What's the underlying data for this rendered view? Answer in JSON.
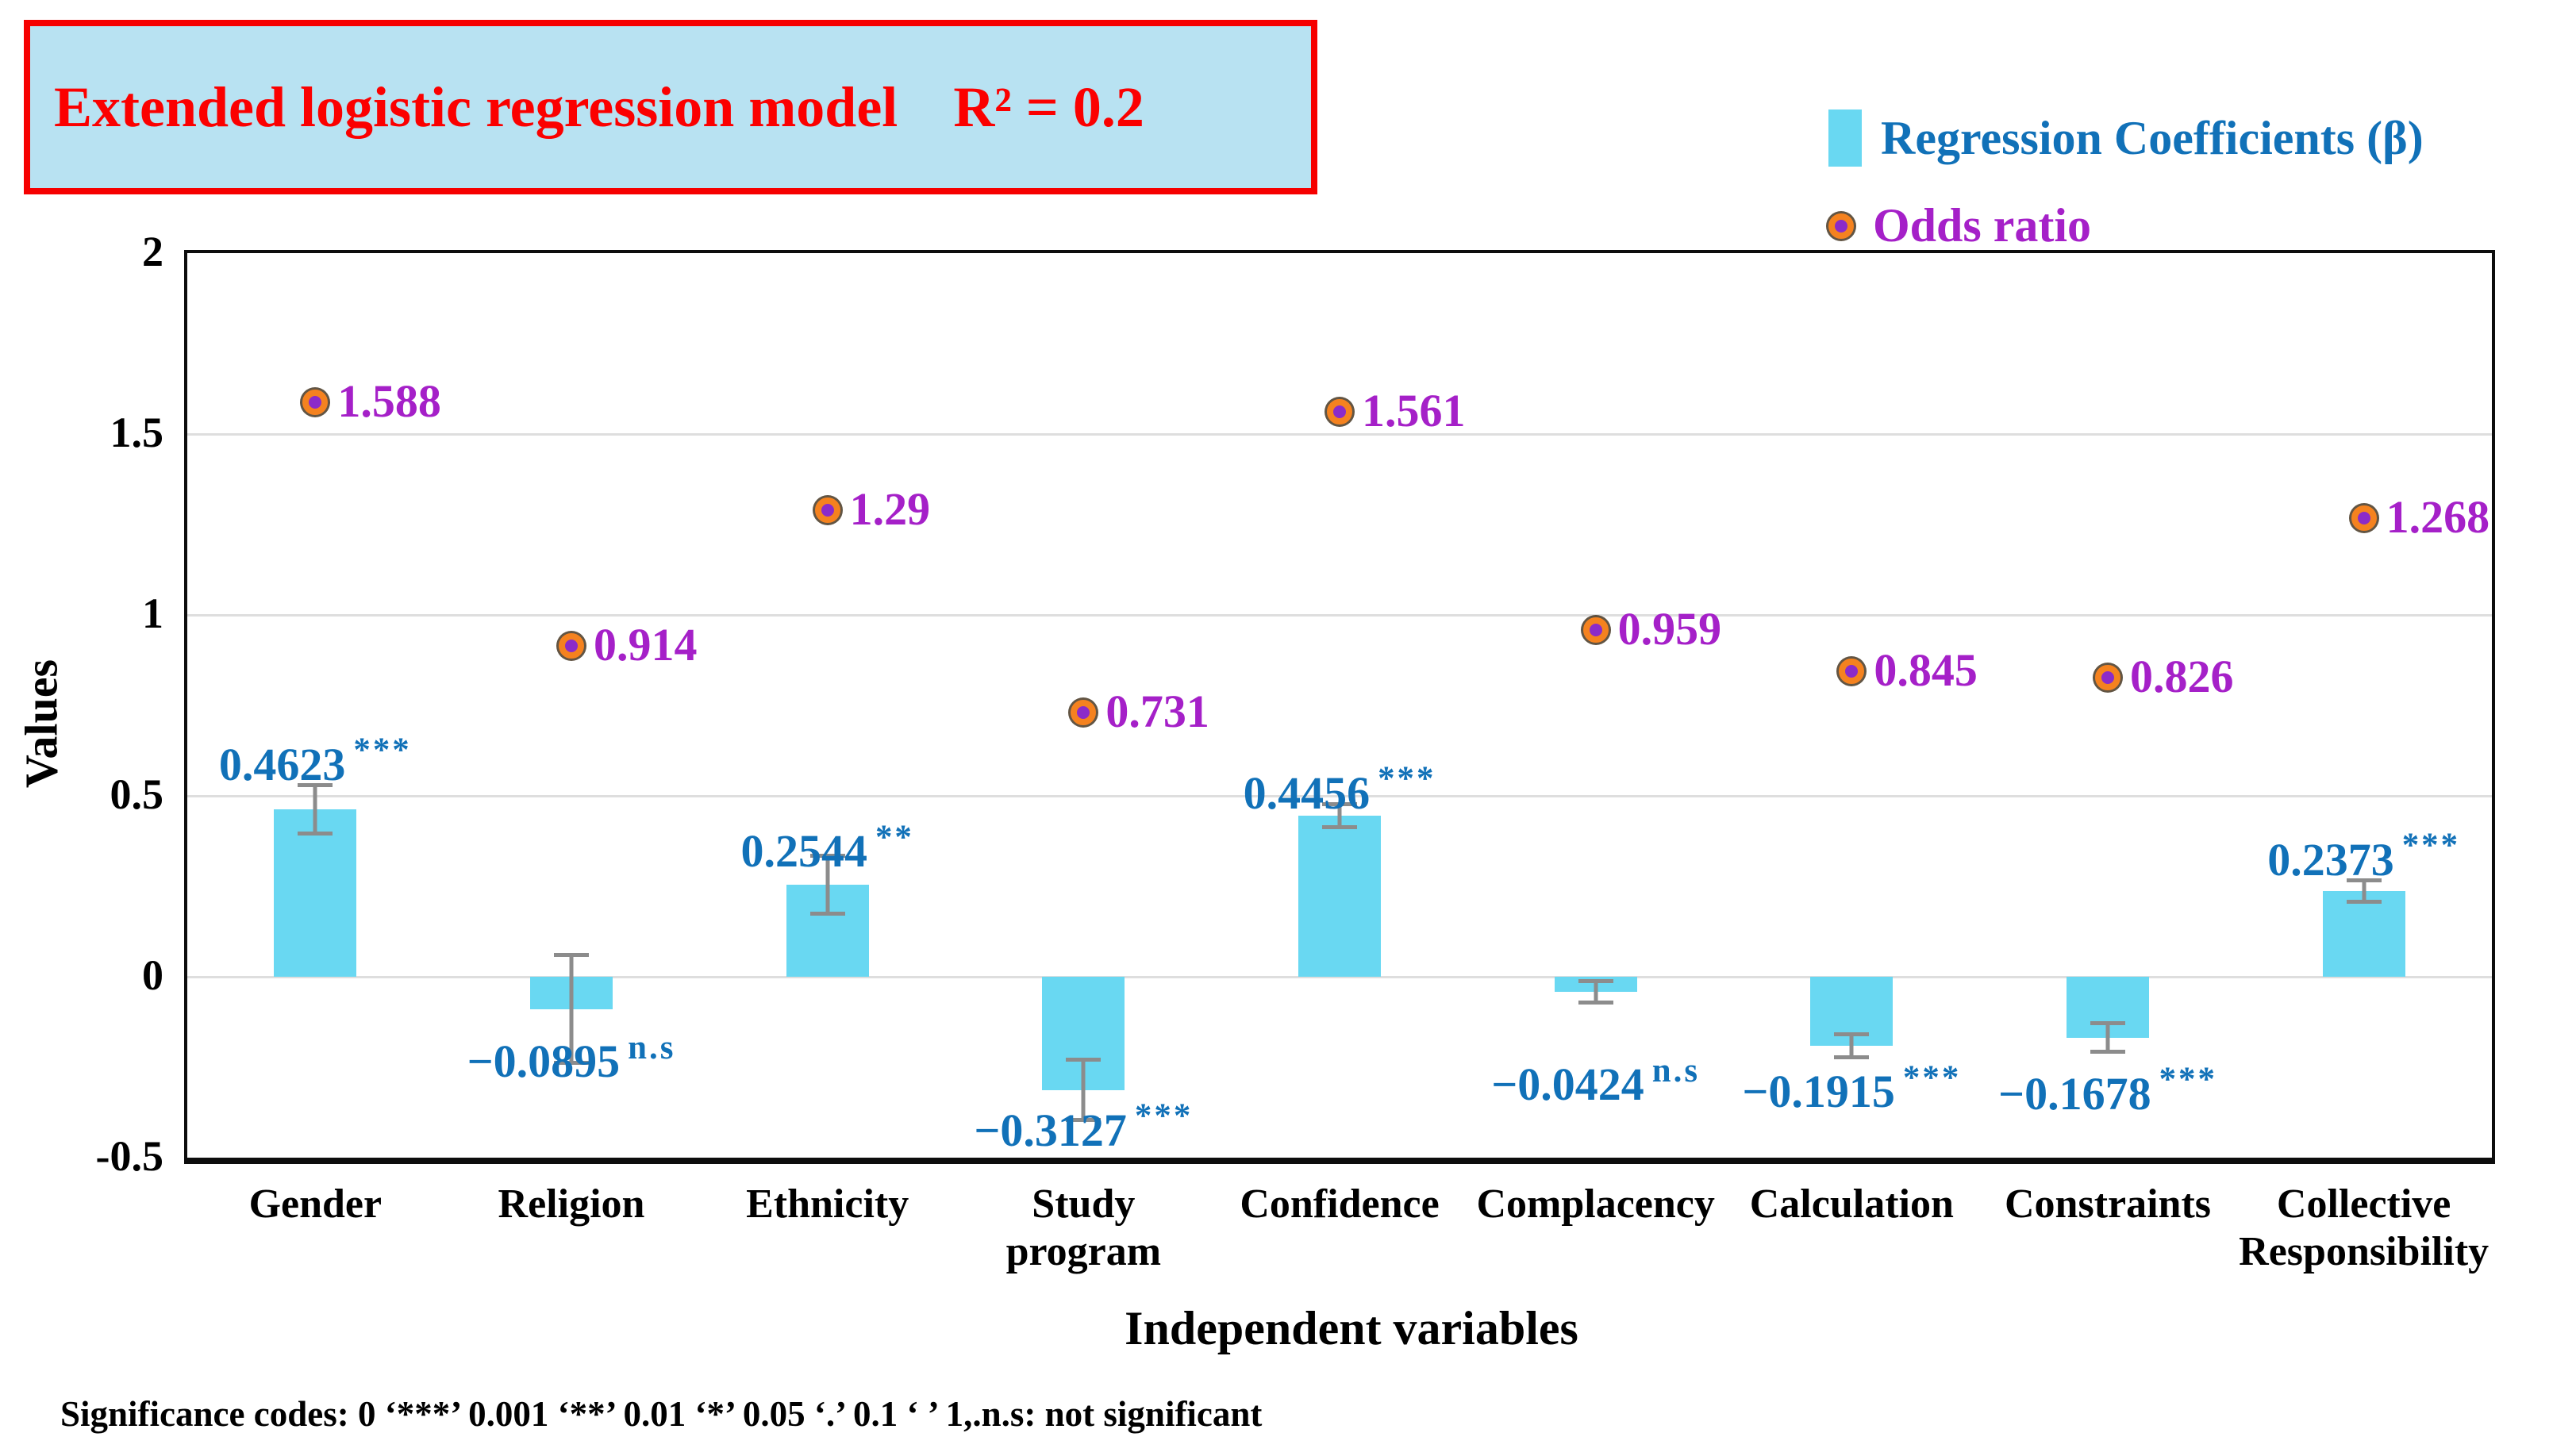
{
  "title": {
    "text": "Extended logistic regression model",
    "r_squared_label": "R² = 0.2"
  },
  "legend": {
    "coefficients_label": "Regression Coefficients (β)",
    "odds_label": "Odds ratio"
  },
  "footnote": "Significance codes: 0 ‘***’ 0.001 ‘**’ 0.01 ‘*’ 0.05 ‘.’ 0.1 ‘ ’ 1,.n.s: not significant",
  "colors": {
    "bar_fill": "#69d8f2",
    "coefficient_text": "#1171b8",
    "odds_text": "#a520c8",
    "dot_ring": "#f5821f",
    "dot_core": "#8b2bc9",
    "error_bar": "#8c8c8c",
    "gridline": "#dedede",
    "title_text": "#fb0000",
    "title_background": "#b8e2f2",
    "title_border": "#f60000"
  },
  "chart_data": {
    "type": "bar",
    "title": "Extended logistic regression model R² = 0.2",
    "xlabel": "Independent variables",
    "ylabel": "Values",
    "ylim": [
      -0.5,
      2
    ],
    "yticks": [
      "2",
      "1.5",
      "1",
      "0.5",
      "0",
      "-0.5"
    ],
    "grid": true,
    "legend_position": "top-right",
    "categories": [
      [
        "Gender"
      ],
      [
        "Religion"
      ],
      [
        "Ethnicity"
      ],
      [
        "Study",
        "program"
      ],
      [
        "Confidence"
      ],
      [
        "Complacency"
      ],
      [
        "Calculation"
      ],
      [
        "Constraints"
      ],
      [
        "Collective",
        "Responsibility"
      ]
    ],
    "series": [
      {
        "name": "Regression Coefficients (β)",
        "type": "bar",
        "values": [
          0.4623,
          -0.0895,
          0.2544,
          -0.3127,
          0.4456,
          -0.0424,
          -0.1915,
          -0.1678,
          0.2373
        ],
        "value_labels": [
          "0.4623",
          "−0.0895",
          "0.2544",
          "−0.3127",
          "0.4456",
          "−0.0424",
          "−0.1915",
          "−0.1678",
          "0.2373"
        ],
        "significance": [
          "***",
          "n.s",
          "**",
          "***",
          "***",
          "n.s",
          "***",
          "***",
          "***"
        ],
        "errors": [
          0.073,
          0.155,
          0.085,
          0.088,
          0.037,
          0.035,
          0.037,
          0.045,
          0.035
        ]
      },
      {
        "name": "Odds ratio",
        "type": "scatter",
        "values": [
          1.588,
          0.914,
          1.29,
          0.731,
          1.561,
          0.959,
          0.845,
          0.826,
          1.268
        ],
        "value_labels": [
          "1.588",
          "0.914",
          "1.29",
          "0.731",
          "1.561",
          "0.959",
          "0.845",
          "0.826",
          "1.268"
        ]
      }
    ]
  }
}
